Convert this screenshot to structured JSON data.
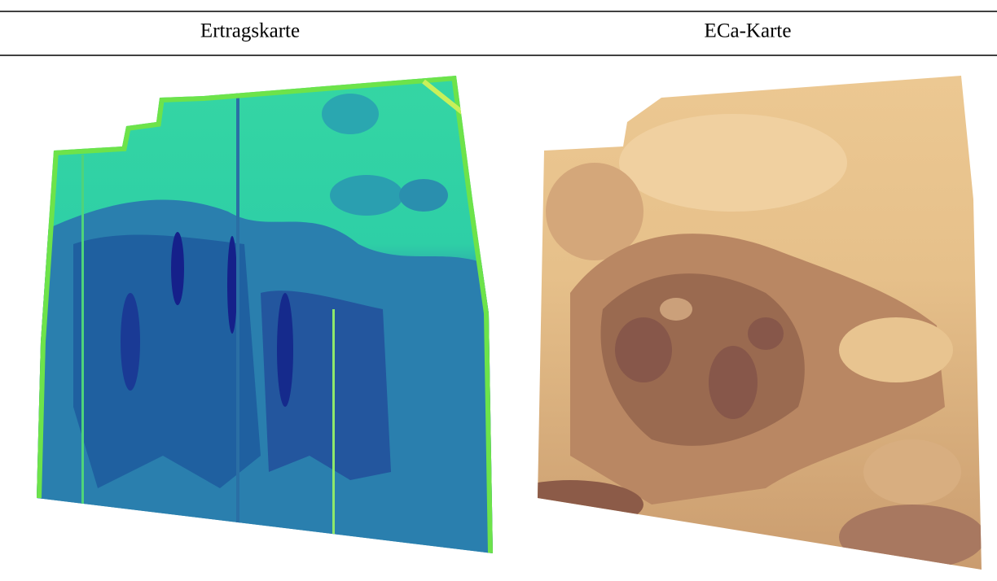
{
  "table": {
    "headers": [
      "Ertragskarte",
      "ECa-Karte"
    ]
  }
}
